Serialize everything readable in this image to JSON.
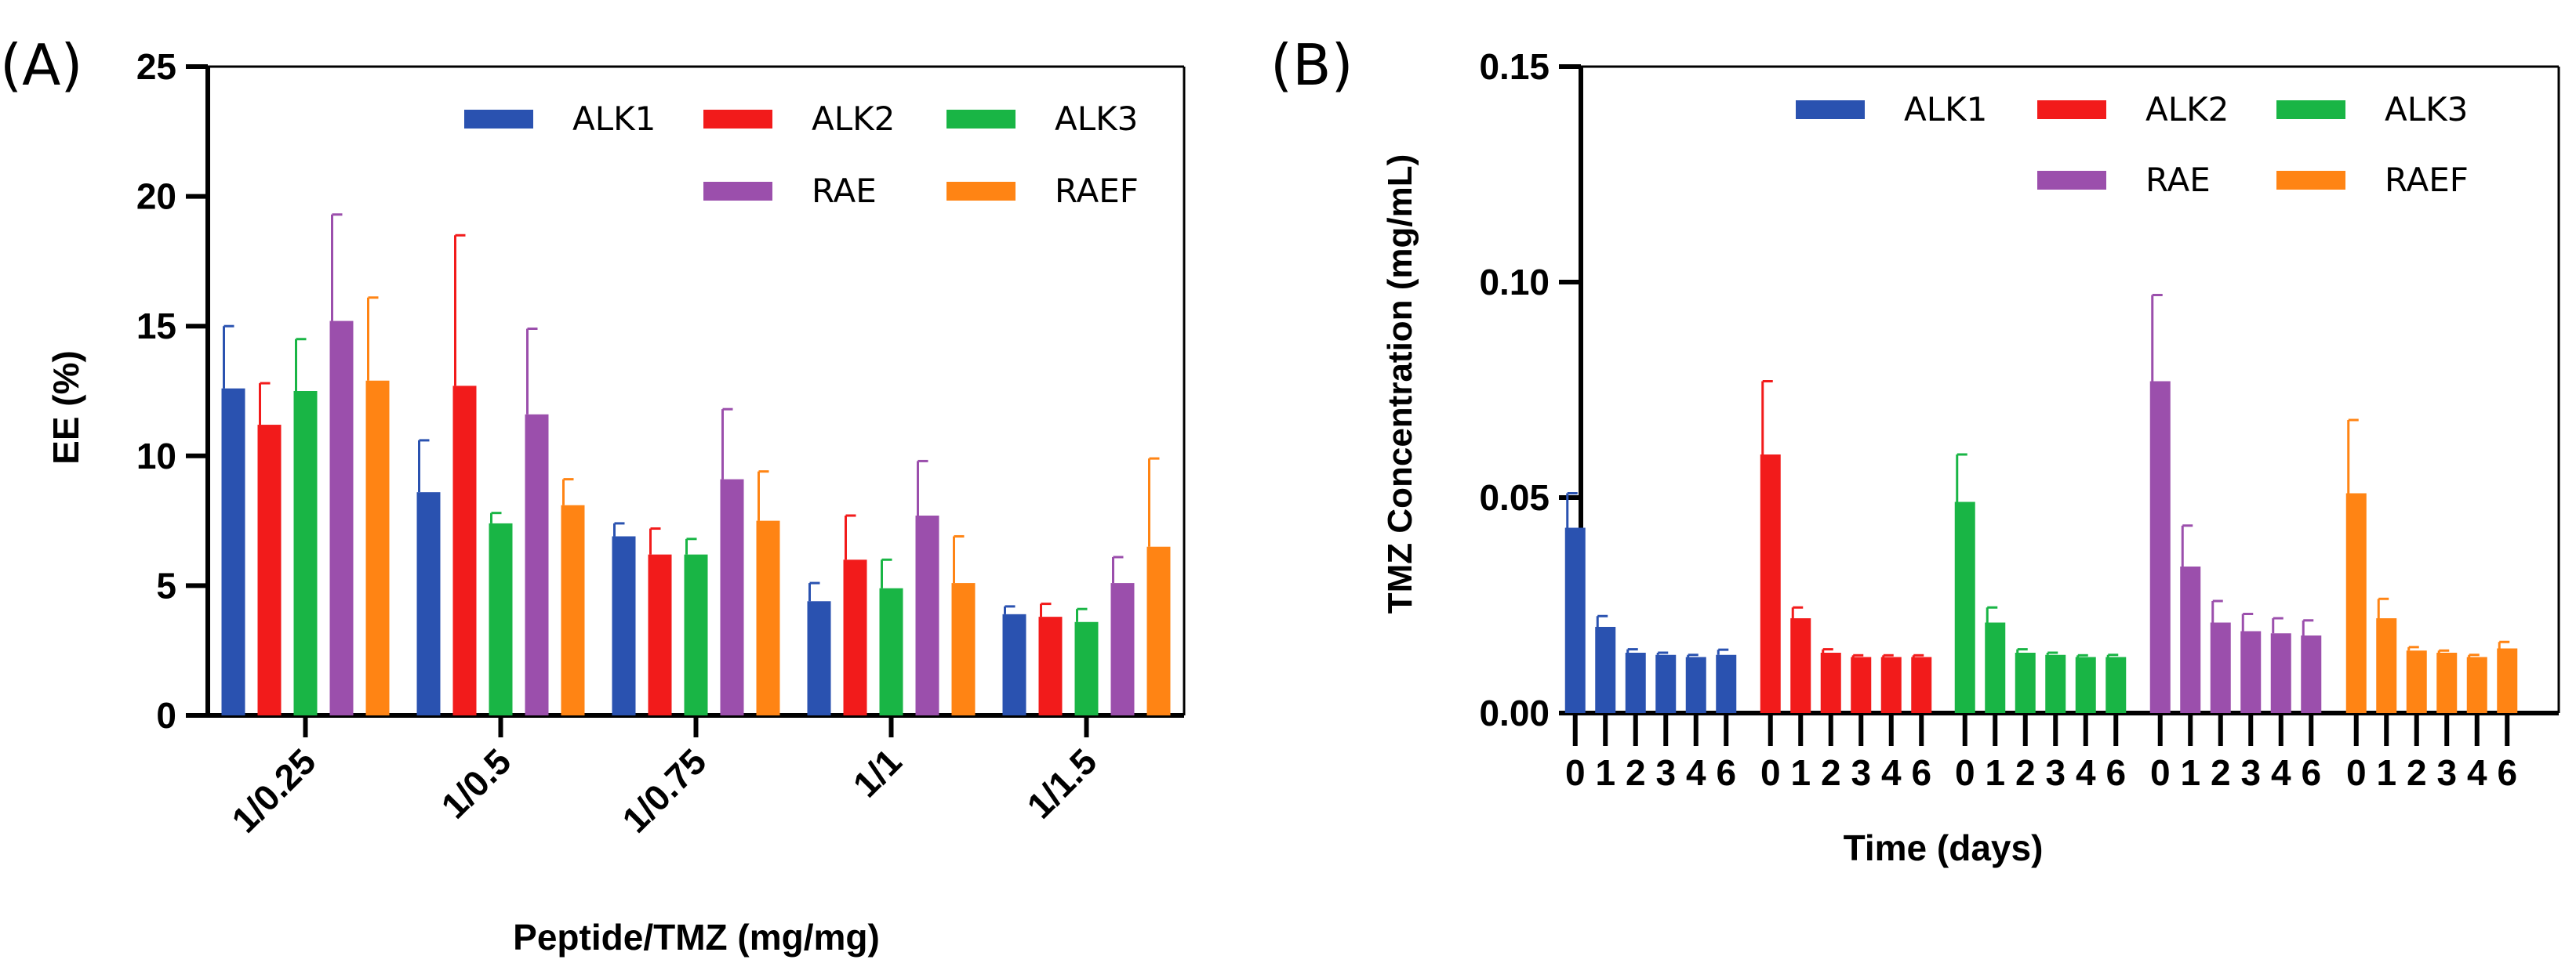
{
  "colors": {
    "ALK1": "#2a52b0",
    "ALK2": "#f21b1b",
    "ALK3": "#19b545",
    "RAE": "#9b4fac",
    "RAEF": "#ff8414"
  },
  "chart_data": [
    {
      "type": "bar",
      "panel_label": "(A)",
      "xlabel": "Peptide/TMZ (mg/mg)",
      "ylabel": "EE (%)",
      "ylim": [
        0,
        25
      ],
      "yticks": [
        "0",
        "5",
        "10",
        "15",
        "20",
        "25"
      ],
      "categories": [
        "1/0.25",
        "1/0.5",
        "1/0.75",
        "1/1",
        "1/1.5"
      ],
      "legend": [
        "ALK1",
        "ALK2",
        "ALK3",
        "RAE",
        "RAEF"
      ],
      "series": [
        {
          "name": "ALK1",
          "values": [
            12.6,
            8.6,
            6.9,
            4.4,
            3.9
          ],
          "errors": [
            2.4,
            2.0,
            0.5,
            0.7,
            0.3
          ]
        },
        {
          "name": "ALK2",
          "values": [
            11.2,
            12.7,
            6.2,
            6.0,
            3.8
          ],
          "errors": [
            1.6,
            5.8,
            1.0,
            1.7,
            0.5
          ]
        },
        {
          "name": "ALK3",
          "values": [
            12.5,
            7.4,
            6.2,
            4.9,
            3.6
          ],
          "errors": [
            2.0,
            0.4,
            0.6,
            1.1,
            0.5
          ]
        },
        {
          "name": "RAE",
          "values": [
            15.2,
            11.6,
            9.1,
            7.7,
            5.1
          ],
          "errors": [
            4.1,
            3.3,
            2.7,
            2.1,
            1.0
          ]
        },
        {
          "name": "RAEF",
          "values": [
            12.9,
            8.1,
            7.5,
            5.1,
            6.5
          ],
          "errors": [
            3.2,
            1.0,
            1.9,
            1.8,
            3.4
          ]
        }
      ]
    },
    {
      "type": "bar",
      "panel_label": "(B)",
      "xlabel": "Time (days)",
      "ylabel": "TMZ Concentration (mg/mL)",
      "ylim": [
        0,
        0.15
      ],
      "yticks": [
        "0.00",
        "0.05",
        "0.10",
        "0.15"
      ],
      "day_labels": [
        "0",
        "1",
        "2",
        "3",
        "4",
        "6"
      ],
      "legend": [
        "ALK1",
        "ALK2",
        "ALK3",
        "RAE",
        "RAEF"
      ],
      "series": [
        {
          "name": "ALK1",
          "values": [
            0.043,
            0.02,
            0.014,
            0.0135,
            0.013,
            0.0135
          ],
          "errors": [
            0.008,
            0.0025,
            0.0008,
            0.0005,
            0.0005,
            0.0012
          ]
        },
        {
          "name": "ALK2",
          "values": [
            0.06,
            0.022,
            0.014,
            0.013,
            0.013,
            0.013
          ],
          "errors": [
            0.017,
            0.0025,
            0.0008,
            0.0004,
            0.0004,
            0.0004
          ]
        },
        {
          "name": "ALK3",
          "values": [
            0.049,
            0.021,
            0.014,
            0.0135,
            0.013,
            0.013
          ],
          "errors": [
            0.011,
            0.0035,
            0.0008,
            0.0005,
            0.0004,
            0.0005
          ]
        },
        {
          "name": "RAE",
          "values": [
            0.077,
            0.034,
            0.021,
            0.019,
            0.0185,
            0.018
          ],
          "errors": [
            0.02,
            0.0095,
            0.005,
            0.004,
            0.0035,
            0.0035
          ]
        },
        {
          "name": "RAEF",
          "values": [
            0.051,
            0.022,
            0.0145,
            0.014,
            0.013,
            0.015
          ],
          "errors": [
            0.017,
            0.0045,
            0.0008,
            0.0005,
            0.0005,
            0.0015
          ]
        }
      ]
    }
  ]
}
